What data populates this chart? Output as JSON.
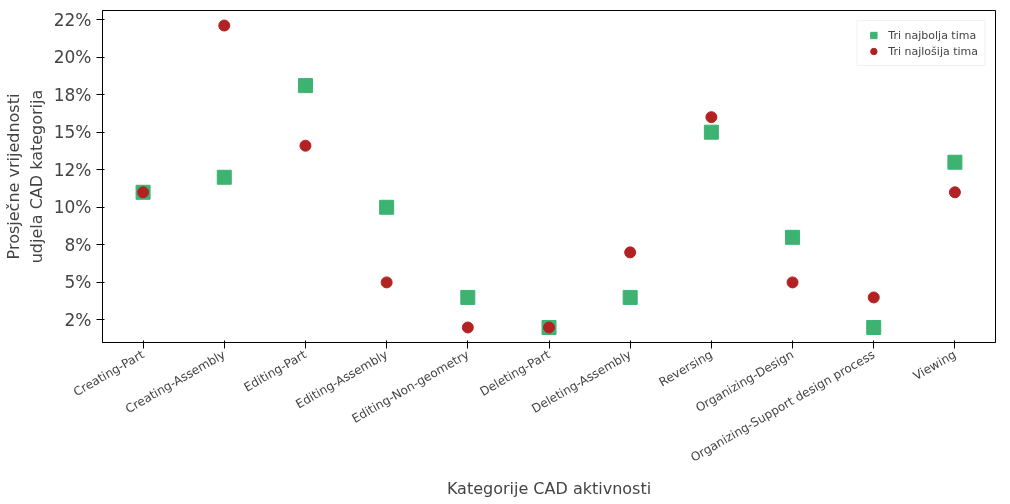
{
  "chart_data": {
    "type": "scatter",
    "xlabel": "Kategorije CAD aktivnosti",
    "ylabel": "Prosječne vrijednosti\nudjela CAD kategorija",
    "categories": [
      "Creating-Part",
      "Creating-Assembly",
      "Editing-Part",
      "Editing-Assembly",
      "Editing-Non-geometry",
      "Deleting-Part",
      "Deleting-Assembly",
      "Reversing",
      "Organizing-Design",
      "Organizing-Support design process",
      "Viewing"
    ],
    "series": [
      {
        "name": "Tri najbolja tima",
        "color": "#3cb371",
        "marker": "square",
        "values": [
          11.0,
          12.0,
          18.1,
          10.0,
          4.0,
          2.0,
          4.0,
          15.0,
          8.0,
          2.0,
          13.0
        ]
      },
      {
        "name": "Tri najlošija tima",
        "color": "#b22222",
        "marker": "circle",
        "values": [
          11.0,
          22.1,
          14.1,
          5.0,
          2.0,
          2.0,
          7.0,
          16.0,
          5.0,
          4.0,
          11.0
        ]
      }
    ],
    "ylim": [
      1.0,
      23.1
    ],
    "yticks": [
      {
        "value": 2.5,
        "label": "2%"
      },
      {
        "value": 5,
        "label": "5%"
      },
      {
        "value": 7.5,
        "label": "8%"
      },
      {
        "value": 10,
        "label": "10%"
      },
      {
        "value": 12.5,
        "label": "12%"
      },
      {
        "value": 15,
        "label": "15%"
      },
      {
        "value": 17.5,
        "label": "18%"
      },
      {
        "value": 20,
        "label": "20%"
      },
      {
        "value": 22.5,
        "label": "22%"
      }
    ],
    "grid": false,
    "legend": "top right"
  }
}
